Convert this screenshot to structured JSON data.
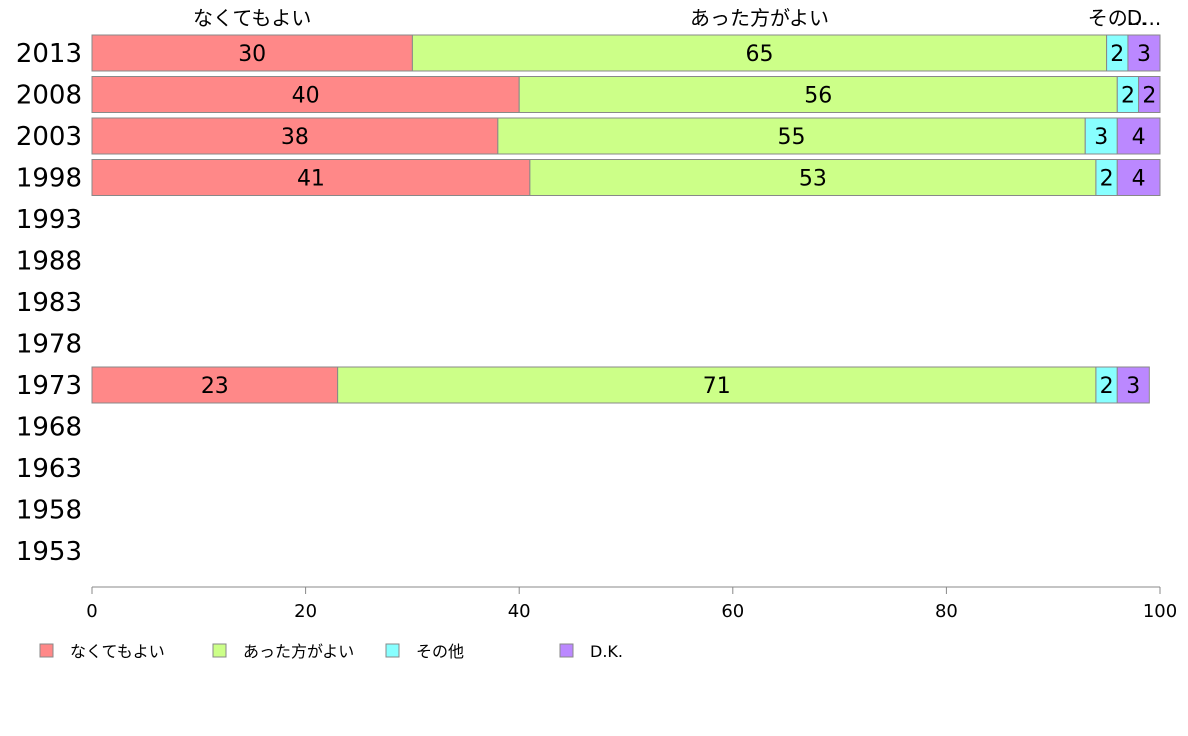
{
  "chart_data": {
    "type": "bar",
    "orientation": "horizontal",
    "stacked": true,
    "categories": [
      "2013",
      "2008",
      "2003",
      "1998",
      "1993",
      "1988",
      "1983",
      "1978",
      "1973",
      "1968",
      "1963",
      "1958",
      "1953"
    ],
    "series": [
      {
        "name": "なくてもよい",
        "color": "#ff8888",
        "values": [
          30,
          40,
          38,
          41,
          null,
          null,
          null,
          null,
          23,
          null,
          null,
          null,
          null
        ]
      },
      {
        "name": "あった方がよい",
        "color": "#ccff88",
        "values": [
          65,
          56,
          55,
          53,
          null,
          null,
          null,
          null,
          71,
          null,
          null,
          null,
          null
        ]
      },
      {
        "name": "その他",
        "color": "#88ffff",
        "values": [
          2,
          2,
          3,
          2,
          null,
          null,
          null,
          null,
          2,
          null,
          null,
          null,
          null
        ]
      },
      {
        "name": "D.K.",
        "color": "#bb88ff",
        "values": [
          3,
          2,
          4,
          4,
          null,
          null,
          null,
          null,
          3,
          null,
          null,
          null,
          null
        ]
      }
    ],
    "top_labels": [
      "なくてもよい",
      "あった方がよい",
      "その...",
      "D..."
    ],
    "xlim": [
      0,
      100
    ],
    "xticks": [
      0,
      20,
      40,
      60,
      80,
      100
    ],
    "legend": {
      "position": "bottom-left",
      "labels": [
        "なくてもよい",
        "あった方がよい",
        "その他",
        "D.K."
      ]
    },
    "grid": false
  }
}
